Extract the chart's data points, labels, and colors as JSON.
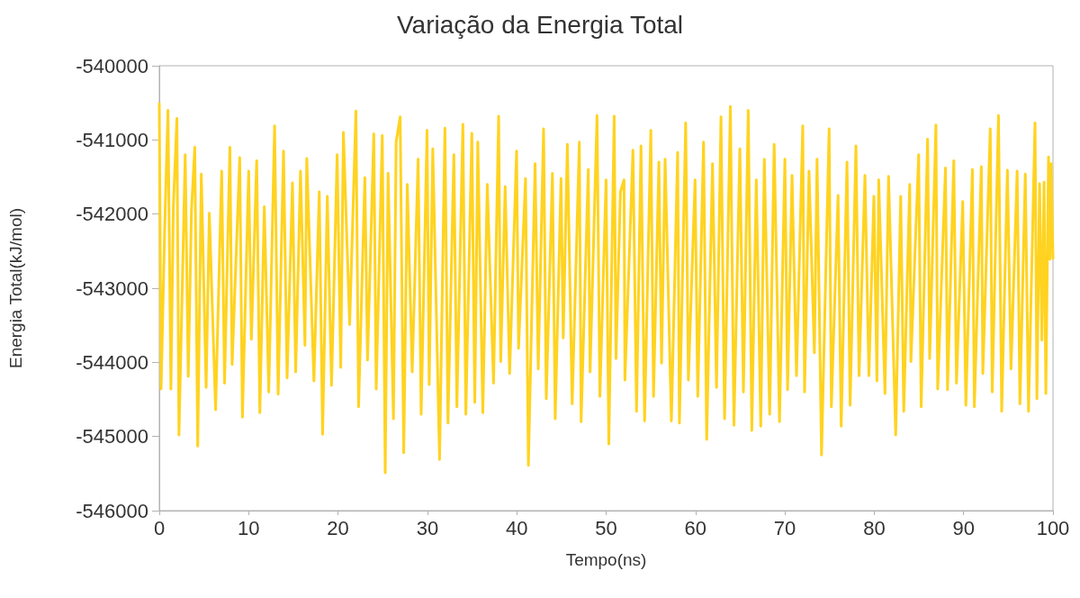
{
  "chart_data": {
    "type": "line",
    "title": "Variação da Energia Total",
    "xlabel": "Tempo(ns)",
    "ylabel": "Energia Total(kJ/mol)",
    "xlim": [
      0,
      100
    ],
    "xticks": [
      0,
      10,
      20,
      30,
      40,
      50,
      60,
      70,
      80,
      90,
      100
    ],
    "ylim": [
      -546000,
      -540000
    ],
    "yticks": [
      -546000,
      -545000,
      -544000,
      -543000,
      -542000,
      -541000,
      -540000
    ],
    "grid": false,
    "marker": "none",
    "line_style": "solid",
    "series": [
      {
        "color": "#ffd320",
        "x": [
          0,
          0.2,
          0.6,
          0.97,
          1.3,
          1.57,
          1.97,
          2.2,
          2.9,
          3.24,
          3.6,
          3.97,
          4.3,
          4.7,
          5.24,
          5.6,
          6.3,
          6.98,
          7.3,
          7.9,
          8.15,
          9.0,
          9.3,
          10.0,
          10.3,
          10.9,
          11.25,
          11.75,
          12.25,
          12.9,
          13.3,
          13.9,
          14.3,
          14.9,
          15.26,
          15.8,
          16.3,
          16.5,
          17.3,
          17.9,
          18.27,
          18.8,
          19.27,
          19.9,
          20.3,
          20.6,
          21.3,
          22.0,
          22.3,
          23.0,
          23.3,
          24.0,
          24.27,
          24.95,
          25.28,
          25.6,
          26.2,
          26.5,
          26.95,
          27.35,
          27.75,
          28.3,
          28.96,
          29.3,
          29.96,
          30.2,
          30.6,
          31.36,
          31.96,
          32.3,
          32.96,
          33.3,
          33.97,
          34.3,
          34.97,
          35.3,
          35.64,
          36.2,
          36.7,
          37.4,
          37.97,
          38.2,
          38.7,
          39.2,
          39.98,
          40.2,
          40.98,
          41.3,
          42.05,
          42.4,
          43.0,
          43.3,
          43.99,
          44.3,
          44.95,
          45.2,
          45.66,
          46.2,
          47.0,
          47.2,
          48.0,
          48.2,
          48.98,
          49.3,
          49.99,
          50.3,
          50.9,
          51.1,
          51.6,
          52.0,
          52.1,
          53.0,
          53.4,
          53.9,
          54.3,
          55.0,
          55.3,
          55.9,
          56.2,
          56.6,
          57.3,
          58.0,
          58.2,
          58.9,
          59.2,
          59.95,
          60.25,
          60.9,
          61.25,
          61.9,
          62.35,
          62.85,
          63.25,
          63.9,
          64.3,
          64.96,
          65.36,
          65.9,
          66.3,
          66.8,
          67.3,
          67.7,
          68.3,
          68.8,
          69.4,
          70.0,
          70.3,
          70.8,
          71.3,
          72.0,
          72.2,
          72.7,
          73.3,
          73.6,
          74.1,
          74.95,
          75.2,
          75.95,
          76.3,
          76.95,
          77.3,
          77.95,
          78.3,
          78.96,
          79.4,
          79.96,
          80.3,
          80.5,
          81.2,
          81.6,
          82.4,
          82.96,
          83.3,
          83.97,
          84.1,
          84.97,
          85.25,
          85.97,
          86.2,
          86.9,
          87.1,
          87.97,
          88.2,
          88.9,
          89.2,
          89.9,
          90.25,
          90.98,
          91.2,
          91.98,
          92.15,
          92.98,
          93.2,
          93.9,
          94.26,
          94.9,
          95.3,
          95.99,
          96.3,
          96.9,
          97.26,
          97.99,
          98.2,
          98.5,
          98.76,
          99.0,
          99.2,
          99.5,
          99.66,
          99.8,
          100
        ],
        "values": [
          -540510,
          -544360,
          -542210,
          -540600,
          -544360,
          -541910,
          -540710,
          -544980,
          -541200,
          -544190,
          -541950,
          -541100,
          -545130,
          -541460,
          -544340,
          -541990,
          -544640,
          -541420,
          -544280,
          -541100,
          -544030,
          -541240,
          -544740,
          -541420,
          -543690,
          -541280,
          -544680,
          -541900,
          -544400,
          -540810,
          -544430,
          -541150,
          -544210,
          -541580,
          -544130,
          -541420,
          -543770,
          -541250,
          -544250,
          -541700,
          -544970,
          -541760,
          -544310,
          -541200,
          -544070,
          -540900,
          -543490,
          -540610,
          -544600,
          -541510,
          -543970,
          -540920,
          -544360,
          -540940,
          -545490,
          -541450,
          -544760,
          -541030,
          -540690,
          -545220,
          -541600,
          -544130,
          -541260,
          -544700,
          -540870,
          -544300,
          -541120,
          -545310,
          -540840,
          -544820,
          -541200,
          -544600,
          -540790,
          -544700,
          -540910,
          -544540,
          -541030,
          -544680,
          -541600,
          -544280,
          -540680,
          -543990,
          -541630,
          -544150,
          -541150,
          -543810,
          -541520,
          -545390,
          -541320,
          -544090,
          -540850,
          -544490,
          -541450,
          -544760,
          -541520,
          -543670,
          -541060,
          -544560,
          -541030,
          -544800,
          -541400,
          -544130,
          -540670,
          -544460,
          -541540,
          -545100,
          -540680,
          -543950,
          -541700,
          -541540,
          -544240,
          -541140,
          -544660,
          -541080,
          -544790,
          -540870,
          -544460,
          -541300,
          -544010,
          -541260,
          -544790,
          -541170,
          -544820,
          -540770,
          -544240,
          -541540,
          -544460,
          -541030,
          -545040,
          -541320,
          -544340,
          -540690,
          -544760,
          -540550,
          -544850,
          -541120,
          -544400,
          -540600,
          -544920,
          -541540,
          -544860,
          -541260,
          -544700,
          -541060,
          -544800,
          -541260,
          -544370,
          -541480,
          -544180,
          -540810,
          -544400,
          -541420,
          -543870,
          -541260,
          -545250,
          -540850,
          -544600,
          -541750,
          -544860,
          -541300,
          -544580,
          -541080,
          -544180,
          -541480,
          -544180,
          -541760,
          -544250,
          -541540,
          -544420,
          -541490,
          -544980,
          -541760,
          -544660,
          -541600,
          -543990,
          -541200,
          -544600,
          -540990,
          -543950,
          -540800,
          -544360,
          -541380,
          -544370,
          -541280,
          -544280,
          -541830,
          -544580,
          -541400,
          -544600,
          -541360,
          -544150,
          -540850,
          -544400,
          -540670,
          -544660,
          -541410,
          -544090,
          -541420,
          -544560,
          -541460,
          -544660,
          -540770,
          -544490,
          -541590,
          -543700,
          -541570,
          -544420,
          -541230,
          -542610,
          -541320,
          -542600
        ]
      }
    ]
  }
}
